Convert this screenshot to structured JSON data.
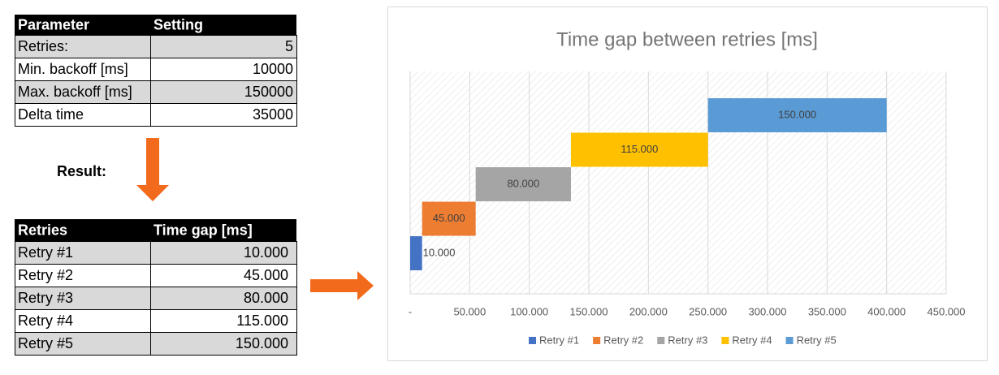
{
  "parameters_table": {
    "header": [
      "Parameter",
      "Setting"
    ],
    "rows": [
      [
        "Retries:",
        5
      ],
      [
        "Min. backoff [ms]",
        10000
      ],
      [
        "Max. backoff [ms]",
        150000
      ],
      [
        "Delta time",
        35000
      ]
    ]
  },
  "result_label": "Result:",
  "result_table": {
    "header": [
      "Retries",
      "Time gap [ms]"
    ],
    "rows": [
      [
        "Retry #1",
        "10.000"
      ],
      [
        "Retry #2",
        "45.000"
      ],
      [
        "Retry #3",
        "80.000"
      ],
      [
        "Retry #4",
        "115.000"
      ],
      [
        "Retry #5",
        "150.000"
      ]
    ]
  },
  "chart_data": {
    "type": "waterfall",
    "orientation": "horizontal",
    "title": "Time gap between retries [ms]",
    "series": [
      {
        "name": "Retry #1",
        "color": "#4472c4",
        "values": [
          10000
        ],
        "value_labels": [
          "10.000"
        ]
      },
      {
        "name": "Retry #2",
        "color": "#ed7d31",
        "values": [
          45000
        ],
        "value_labels": [
          "45.000"
        ]
      },
      {
        "name": "Retry #3",
        "color": "#a5a5a5",
        "values": [
          80000
        ],
        "value_labels": [
          "80.000"
        ]
      },
      {
        "name": "Retry #4",
        "color": "#ffc000",
        "values": [
          115000
        ],
        "value_labels": [
          "115.000"
        ]
      },
      {
        "name": "Retry #5",
        "color": "#5b9bd5",
        "values": [
          150000
        ],
        "value_labels": [
          "150.000"
        ]
      }
    ],
    "xlim": [
      0,
      450000
    ],
    "xticks": [
      {
        "value": 0,
        "label": "-"
      },
      {
        "value": 50000,
        "label": "50.000"
      },
      {
        "value": 100000,
        "label": "100.000"
      },
      {
        "value": 150000,
        "label": "150.000"
      },
      {
        "value": 200000,
        "label": "200.000"
      },
      {
        "value": 250000,
        "label": "250.000"
      },
      {
        "value": 300000,
        "label": "300.000"
      },
      {
        "value": 350000,
        "label": "350.000"
      },
      {
        "value": 400000,
        "label": "400.000"
      },
      {
        "value": 450000,
        "label": "450.000"
      }
    ],
    "grid": true,
    "legend": "bottom"
  }
}
